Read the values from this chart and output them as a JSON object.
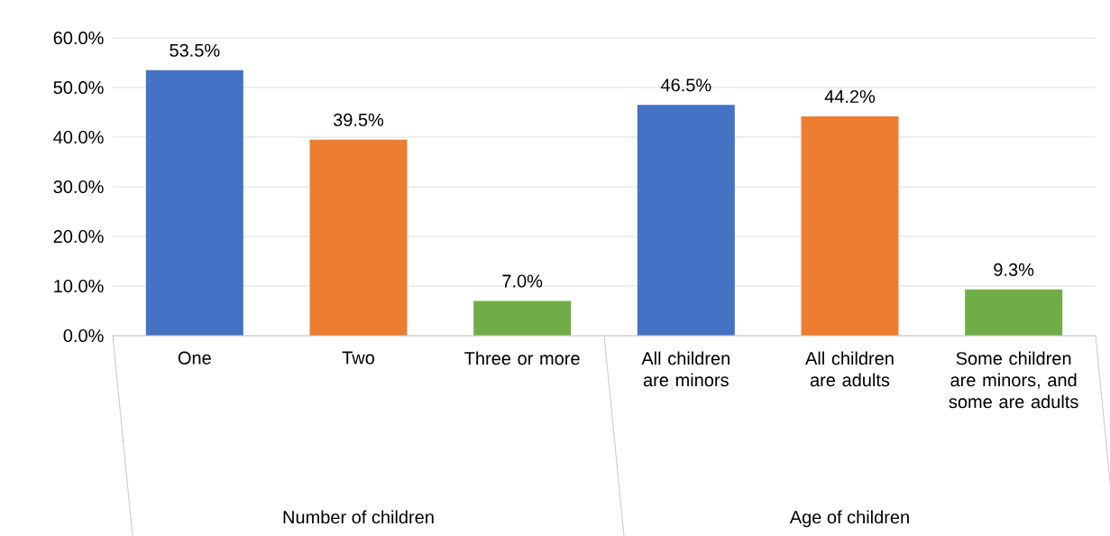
{
  "chart_data": {
    "type": "bar",
    "categories": [
      "One",
      "Two",
      "Three or more",
      "All children are minors",
      "All children are adults",
      "Some children are minors, and some are adults"
    ],
    "values": [
      53.5,
      39.5,
      7.0,
      46.5,
      44.2,
      9.3
    ],
    "colors": [
      "#4472c4",
      "#ed7d31",
      "#70ad47",
      "#4472c4",
      "#ed7d31",
      "#70ad47"
    ],
    "value_labels": [
      "53.5%",
      "39.5%",
      "7.0%",
      "46.5%",
      "44.2%",
      "9.3%"
    ],
    "ylim": [
      0,
      60
    ],
    "yticks": [
      {
        "value": 0,
        "label": "0.0%"
      },
      {
        "value": 10,
        "label": "10.0%"
      },
      {
        "value": 20,
        "label": "20.0%"
      },
      {
        "value": 30,
        "label": "30.0%"
      },
      {
        "value": 40,
        "label": "40.0%"
      },
      {
        "value": 50,
        "label": "50.0%"
      },
      {
        "value": 60,
        "label": "60.0%"
      }
    ],
    "grid": "y",
    "annotations": [
      "Number of children",
      "Age of children"
    ]
  }
}
